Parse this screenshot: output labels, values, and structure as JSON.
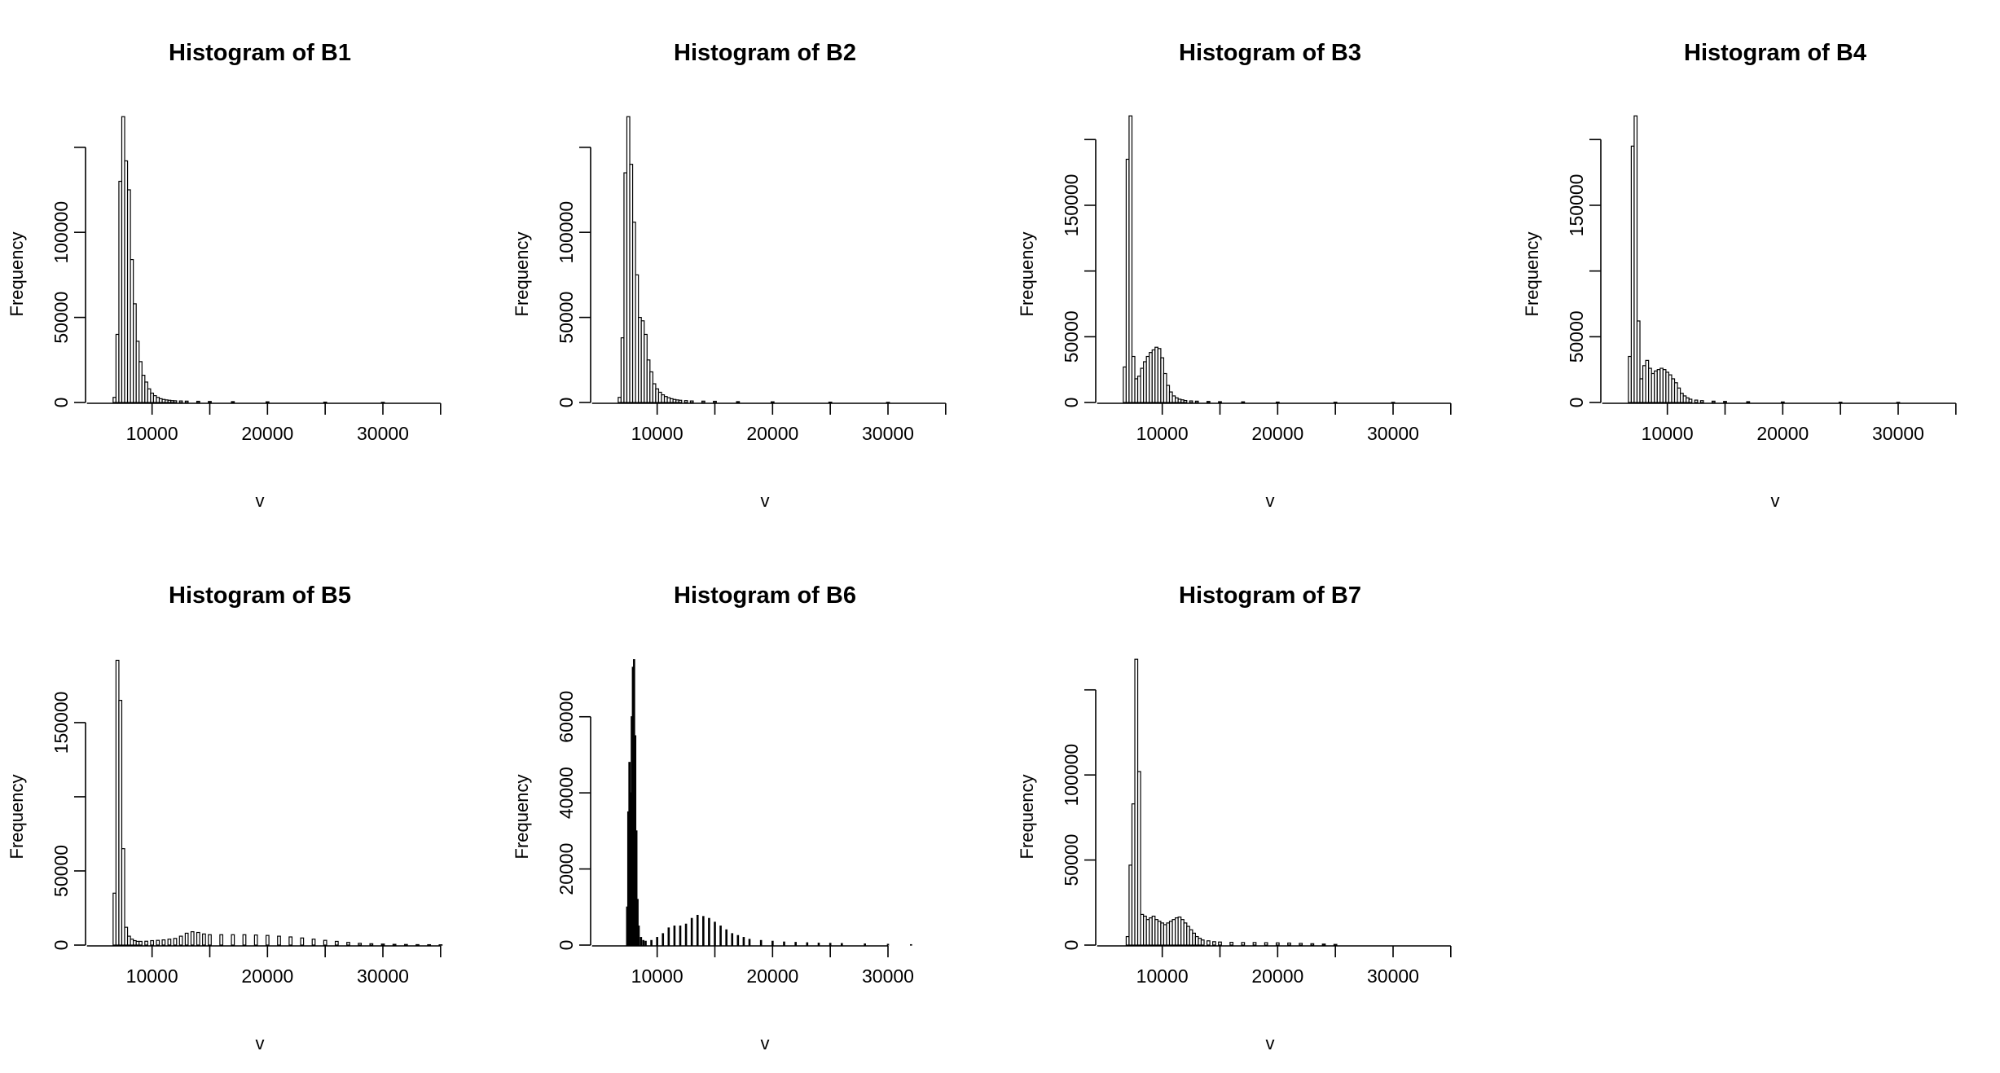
{
  "chart_data": [
    {
      "type": "bar",
      "title": "Histogram of B1",
      "xlabel": "v",
      "ylabel": "Frequency",
      "xlim": [
        4800,
        36000
      ],
      "ylim": [
        0,
        170000
      ],
      "xticks": [
        10000,
        15000,
        20000,
        25000,
        30000,
        35000
      ],
      "xtick_labels": [
        "10000",
        "20000",
        "30000"
      ],
      "yticks": [
        0,
        50000,
        100000,
        150000
      ],
      "ytick_labels": [
        "0",
        "50000",
        "100000"
      ],
      "bin_width": 250,
      "x": [
        6750,
        7000,
        7250,
        7500,
        7750,
        8000,
        8250,
        8500,
        8750,
        9000,
        9250,
        9500,
        9750,
        10000,
        10250,
        10500,
        10750,
        11000,
        11250,
        11500,
        11750,
        12000,
        12500,
        13000,
        14000,
        15000,
        17000,
        20000,
        25000,
        30000
      ],
      "values": [
        3000,
        40000,
        130000,
        168000,
        142000,
        125000,
        84000,
        58000,
        36000,
        24000,
        16000,
        12000,
        8000,
        5500,
        4000,
        3000,
        2200,
        1800,
        1500,
        1300,
        1100,
        1000,
        900,
        800,
        700,
        600,
        500,
        400,
        200,
        100
      ]
    },
    {
      "type": "bar",
      "title": "Histogram of B2",
      "xlabel": "v",
      "ylabel": "Frequency",
      "xlim": [
        4800,
        36000
      ],
      "ylim": [
        0,
        170000
      ],
      "xticks": [
        10000,
        15000,
        20000,
        25000,
        30000,
        35000
      ],
      "xtick_labels": [
        "10000",
        "20000",
        "30000"
      ],
      "yticks": [
        0,
        50000,
        100000,
        150000
      ],
      "ytick_labels": [
        "0",
        "50000",
        "100000"
      ],
      "bin_width": 250,
      "x": [
        6750,
        7000,
        7250,
        7500,
        7750,
        8000,
        8250,
        8500,
        8750,
        9000,
        9250,
        9500,
        9750,
        10000,
        10250,
        10500,
        10750,
        11000,
        11250,
        11500,
        11750,
        12000,
        12500,
        13000,
        14000,
        15000,
        17000,
        20000,
        25000,
        30000
      ],
      "values": [
        3000,
        38000,
        135000,
        168000,
        140000,
        106000,
        75000,
        50000,
        48000,
        40000,
        25000,
        18000,
        11000,
        8000,
        6000,
        4500,
        3500,
        2800,
        2200,
        1800,
        1500,
        1300,
        1100,
        900,
        800,
        700,
        500,
        400,
        200,
        100
      ]
    },
    {
      "type": "bar",
      "title": "Histogram of B3",
      "xlabel": "v",
      "ylabel": "Frequency",
      "xlim": [
        4800,
        36000
      ],
      "ylim": [
        0,
        220000
      ],
      "xticks": [
        10000,
        15000,
        20000,
        25000,
        30000,
        35000
      ],
      "xtick_labels": [
        "10000",
        "20000",
        "30000"
      ],
      "yticks": [
        0,
        50000,
        100000,
        150000,
        200000
      ],
      "ytick_labels": [
        "0",
        "50000",
        "150000"
      ],
      "bin_width": 250,
      "x": [
        6750,
        7000,
        7250,
        7500,
        7750,
        8000,
        8250,
        8500,
        8750,
        9000,
        9250,
        9500,
        9750,
        10000,
        10250,
        10500,
        10750,
        11000,
        11250,
        11500,
        11750,
        12000,
        12500,
        13000,
        14000,
        15000,
        17000,
        20000,
        25000,
        30000
      ],
      "values": [
        27000,
        185000,
        218000,
        35000,
        18000,
        20000,
        26000,
        31000,
        35000,
        38000,
        40000,
        42000,
        41000,
        34000,
        22000,
        13000,
        8000,
        5000,
        3500,
        2500,
        2000,
        1500,
        1200,
        1000,
        800,
        600,
        500,
        300,
        200,
        100
      ]
    },
    {
      "type": "bar",
      "title": "Histogram of B4",
      "xlabel": "v",
      "ylabel": "Frequency",
      "xlim": [
        4800,
        36000
      ],
      "ylim": [
        0,
        220000
      ],
      "xticks": [
        10000,
        15000,
        20000,
        25000,
        30000,
        35000
      ],
      "xtick_labels": [
        "10000",
        "20000",
        "30000"
      ],
      "yticks": [
        0,
        50000,
        100000,
        150000,
        200000
      ],
      "ytick_labels": [
        "0",
        "50000",
        "150000"
      ],
      "bin_width": 250,
      "x": [
        6750,
        7000,
        7250,
        7500,
        7750,
        8000,
        8250,
        8500,
        8750,
        9000,
        9250,
        9500,
        9750,
        10000,
        10250,
        10500,
        10750,
        11000,
        11250,
        11500,
        11750,
        12000,
        12500,
        13000,
        14000,
        15000,
        17000,
        20000,
        25000,
        30000
      ],
      "values": [
        35000,
        195000,
        218000,
        62000,
        18000,
        28000,
        32000,
        26000,
        22000,
        24000,
        25000,
        26000,
        25000,
        23000,
        21000,
        18000,
        15000,
        11000,
        7000,
        5000,
        3500,
        2500,
        1800,
        1400,
        1000,
        800,
        600,
        400,
        200,
        100
      ]
    },
    {
      "type": "bar",
      "title": "Histogram of B5",
      "xlabel": "v",
      "ylabel": "Frequency",
      "xlim": [
        4800,
        36000
      ],
      "ylim": [
        0,
        195000
      ],
      "xticks": [
        10000,
        15000,
        20000,
        25000,
        30000,
        35000
      ],
      "xtick_labels": [
        "10000",
        "20000",
        "30000"
      ],
      "yticks": [
        0,
        50000,
        100000,
        150000
      ],
      "ytick_labels": [
        "0",
        "50000",
        "150000"
      ],
      "bin_width": 250,
      "x": [
        6750,
        7000,
        7250,
        7500,
        7750,
        8000,
        8250,
        8500,
        8750,
        9000,
        9500,
        10000,
        10500,
        11000,
        11500,
        12000,
        12500,
        13000,
        13500,
        14000,
        14500,
        15000,
        16000,
        17000,
        18000,
        19000,
        20000,
        21000,
        22000,
        23000,
        24000,
        25000,
        26000,
        27000,
        28000,
        29000,
        30000,
        31000,
        32000,
        33000,
        34000,
        35000
      ],
      "values": [
        35000,
        192000,
        165000,
        65000,
        12000,
        6000,
        4000,
        3000,
        2500,
        2500,
        2600,
        3000,
        3200,
        3500,
        4000,
        4500,
        6000,
        8000,
        9000,
        8500,
        7500,
        7000,
        7000,
        7000,
        7000,
        6800,
        6500,
        6000,
        5500,
        4800,
        4000,
        3200,
        2500,
        1800,
        1200,
        900,
        700,
        500,
        400,
        300,
        250,
        200
      ]
    },
    {
      "type": "bar",
      "title": "Histogram of B6",
      "xlabel": "v",
      "ylabel": "Frequency",
      "xlim": [
        4800,
        36000
      ],
      "ylim": [
        0,
        76000
      ],
      "xticks": [
        10000,
        15000,
        20000,
        25000,
        30000
      ],
      "xtick_labels": [
        "10000",
        "20000",
        "30000"
      ],
      "yticks": [
        0,
        20000,
        40000,
        60000
      ],
      "ytick_labels": [
        "0",
        "20000",
        "40000",
        "60000"
      ],
      "bin_width": 100,
      "x": [
        7400,
        7500,
        7600,
        7700,
        7800,
        7900,
        8000,
        8100,
        8200,
        8300,
        8400,
        8600,
        8800,
        9000,
        9500,
        10000,
        10500,
        11000,
        11500,
        12000,
        12500,
        13000,
        13500,
        14000,
        14500,
        15000,
        15500,
        16000,
        16500,
        17000,
        17500,
        18000,
        19000,
        20000,
        21000,
        22000,
        23000,
        24000,
        25000,
        26000,
        28000,
        30000,
        32000
      ],
      "values": [
        10000,
        35000,
        48000,
        40000,
        60000,
        73000,
        75000,
        55000,
        30000,
        12000,
        5000,
        2000,
        1200,
        1000,
        1200,
        2000,
        3000,
        4500,
        5000,
        5000,
        5500,
        7000,
        7800,
        7500,
        7000,
        6000,
        5000,
        4000,
        3000,
        2500,
        2000,
        1500,
        1200,
        1000,
        800,
        700,
        600,
        500,
        450,
        400,
        300,
        200,
        100
      ]
    },
    {
      "type": "bar",
      "title": "Histogram of B7",
      "xlabel": "v",
      "ylabel": "Frequency",
      "xlim": [
        4800,
        36000
      ],
      "ylim": [
        0,
        170000
      ],
      "xticks": [
        10000,
        15000,
        20000,
        25000,
        30000,
        35000
      ],
      "xtick_labels": [
        "10000",
        "20000",
        "30000"
      ],
      "yticks": [
        0,
        50000,
        100000,
        150000
      ],
      "ytick_labels": [
        "0",
        "50000",
        "100000"
      ],
      "bin_width": 250,
      "x": [
        7000,
        7250,
        7500,
        7750,
        8000,
        8250,
        8500,
        8750,
        9000,
        9250,
        9500,
        9750,
        10000,
        10250,
        10500,
        10750,
        11000,
        11250,
        11500,
        11750,
        12000,
        12250,
        12500,
        12750,
        13000,
        13250,
        13500,
        14000,
        14500,
        15000,
        16000,
        17000,
        18000,
        19000,
        20000,
        21000,
        22000,
        23000,
        24000,
        25000
      ],
      "values": [
        5000,
        47000,
        83000,
        168000,
        102000,
        18000,
        17000,
        15000,
        16000,
        17000,
        15000,
        14000,
        13000,
        12000,
        13000,
        14000,
        15000,
        16000,
        16500,
        15000,
        13000,
        11000,
        9000,
        7000,
        5000,
        4000,
        3000,
        2500,
        2000,
        1800,
        1600,
        1500,
        1500,
        1400,
        1300,
        1200,
        1000,
        800,
        600,
        400
      ]
    }
  ]
}
